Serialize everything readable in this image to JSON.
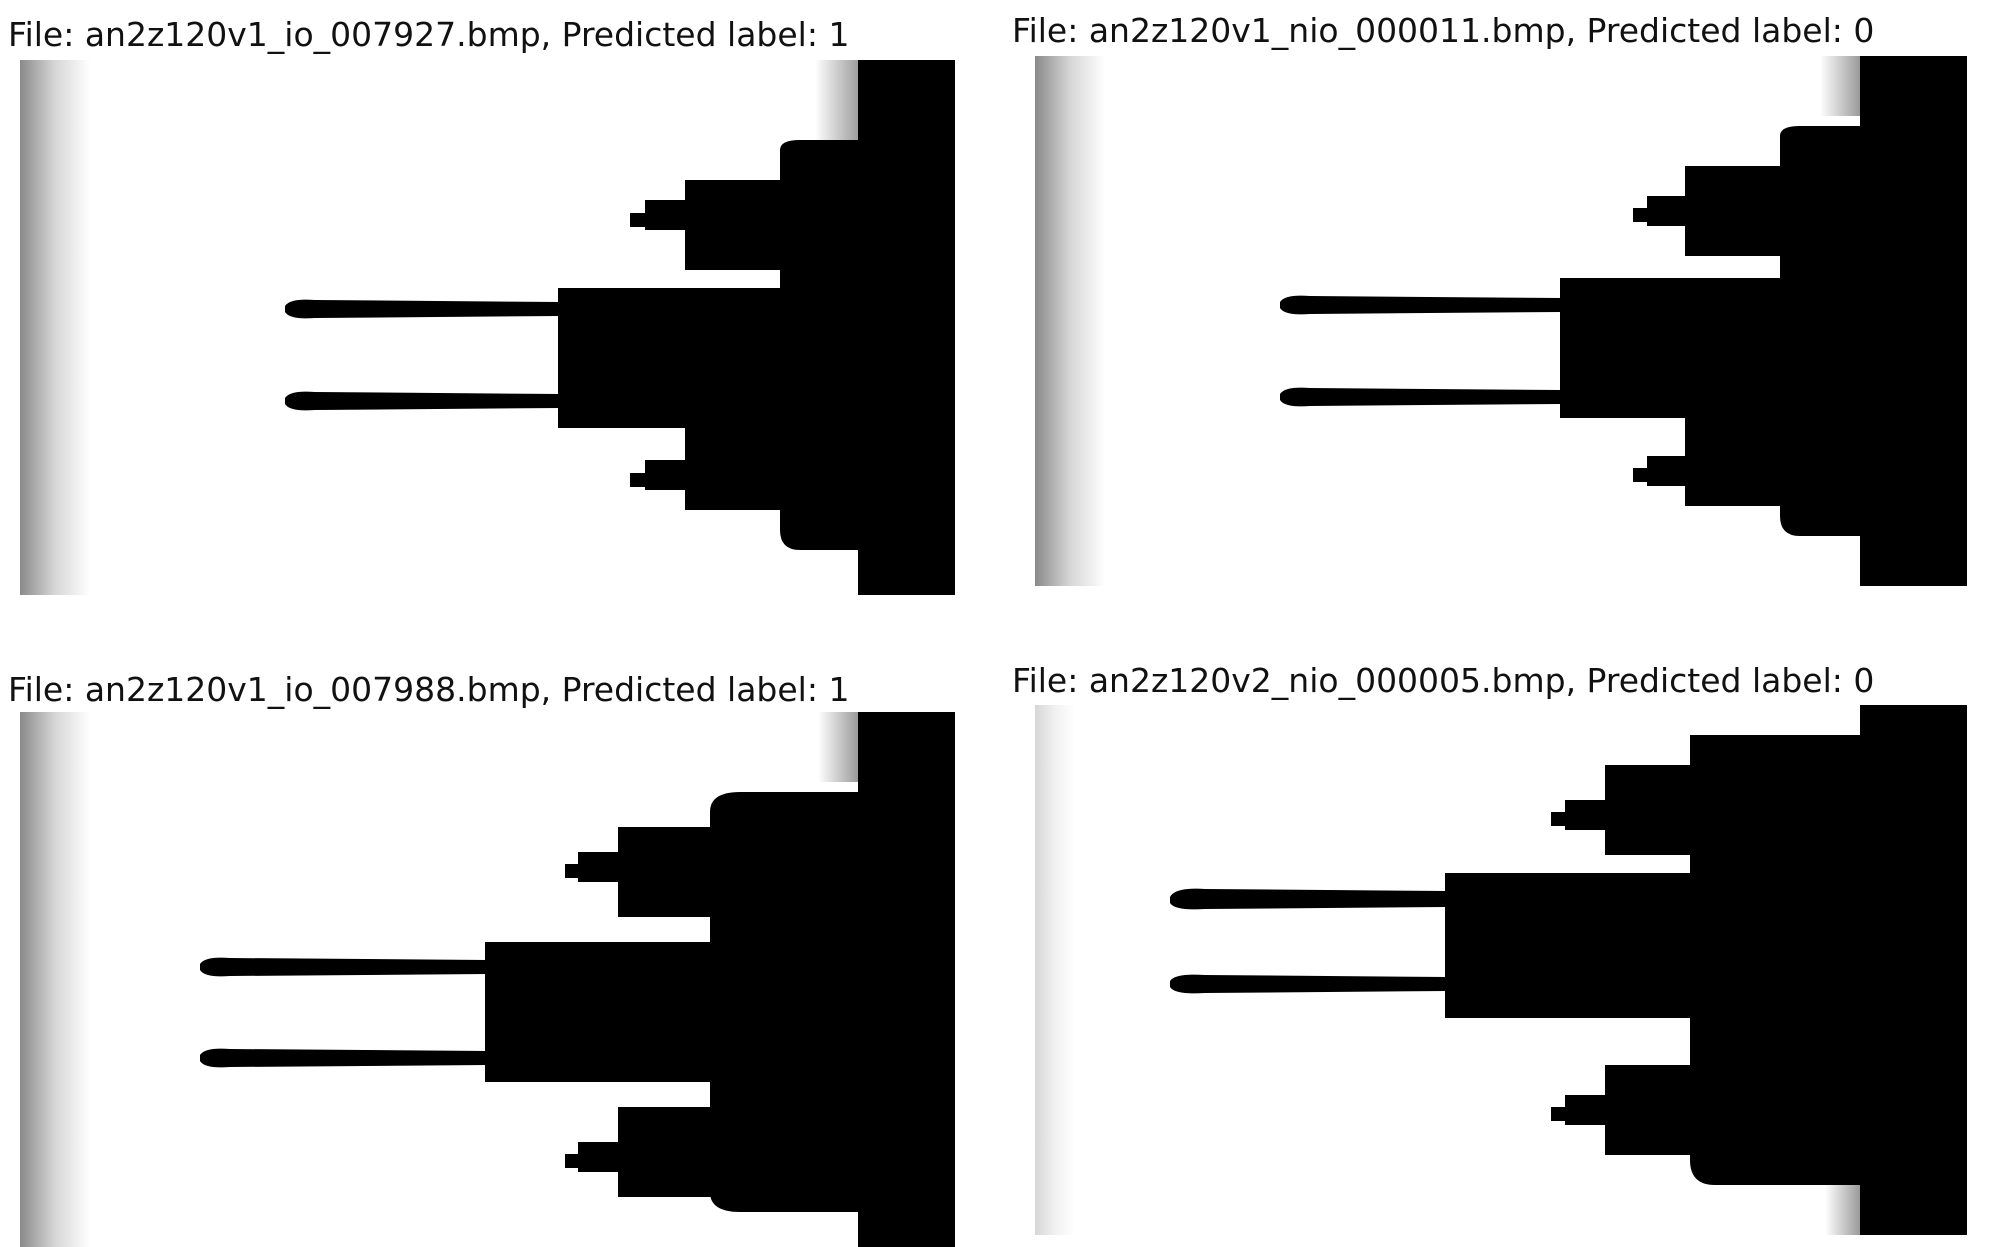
{
  "panels": [
    {
      "title": "File: an2z120v1_io_007927.bmp, Predicted label: 1"
    },
    {
      "title": "File: an2z120v1_nio_000011.bmp, Predicted label: 0"
    },
    {
      "title": "File: an2z120v1_io_007988.bmp, Predicted label: 1"
    },
    {
      "title": "File: an2z120v2_nio_000005.bmp, Predicted label: 0"
    }
  ]
}
